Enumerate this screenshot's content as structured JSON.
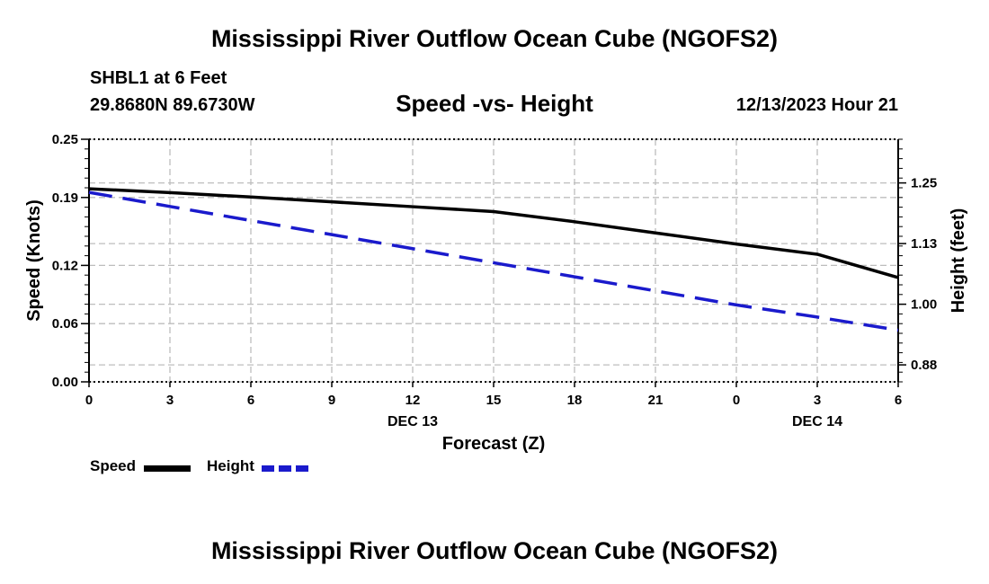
{
  "page": {
    "title_top": "Mississippi River Outflow Ocean Cube (NGOFS2)",
    "title_bottom": "Mississippi River Outflow Ocean Cube (NGOFS2)",
    "station": "SHBL1 at 6 Feet",
    "coordinates": "29.8680N  89.6730W",
    "subtitle": "Speed -vs- Height",
    "datetime": "12/13/2023 Hour 21"
  },
  "chart_data": {
    "type": "line",
    "title": "Speed -vs- Height",
    "xlabel": "Forecast (Z)",
    "ylabel": "Speed (Knots)",
    "y2label": "Height (feet)",
    "x": [
      0,
      3,
      6,
      9,
      12,
      15,
      18,
      21,
      24,
      27,
      30
    ],
    "x_tick_labels": [
      "0",
      "3",
      "6",
      "9",
      "12",
      "15",
      "18",
      "21",
      "0",
      "3",
      "6"
    ],
    "x_date_labels": [
      {
        "at": 12,
        "label": "DEC 13"
      },
      {
        "at": 27,
        "label": "DEC 14"
      }
    ],
    "xlim": [
      0,
      30
    ],
    "ylim": [
      0,
      0.25
    ],
    "y_ticks": [
      0.0,
      0.06,
      0.12,
      0.19,
      0.25
    ],
    "y_tick_labels": [
      "0.00",
      "0.06",
      "0.12",
      "0.19",
      "0.25"
    ],
    "y2lim": [
      0.84,
      1.34
    ],
    "y2_ticks": [
      0.875,
      1.0,
      1.125,
      1.25
    ],
    "y2_tick_labels": [
      "0.88",
      "1.00",
      "1.13",
      "1.25"
    ],
    "grid": true,
    "legend_position": "bottom-left",
    "series": [
      {
        "name": "Speed",
        "axis": "left",
        "color": "#000000",
        "style": "solid",
        "values": [
          0.199,
          0.195,
          0.1905,
          0.1855,
          0.1805,
          0.1755,
          0.165,
          0.1535,
          0.142,
          0.1315,
          0.1075
        ]
      },
      {
        "name": "Height",
        "axis": "right",
        "color": "#1a1acc",
        "style": "dashed",
        "values": [
          1.2305,
          1.2015,
          1.1725,
          1.1435,
          1.1145,
          1.0855,
          1.0565,
          1.0275,
          0.9985,
          0.9735,
          0.9465
        ]
      }
    ]
  }
}
